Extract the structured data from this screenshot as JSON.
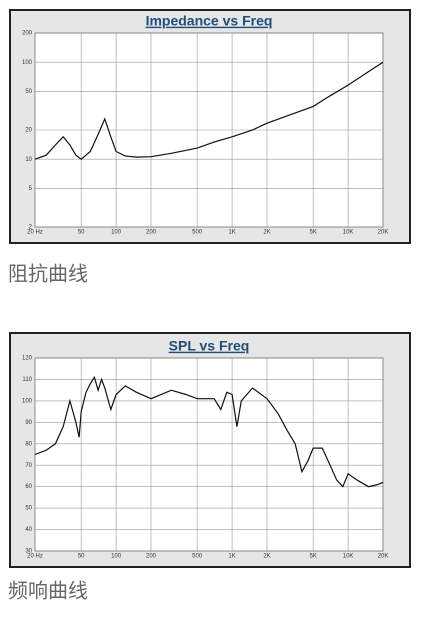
{
  "chart_data": [
    {
      "type": "line",
      "title": "Impedance vs Freq",
      "caption": "阻抗曲线",
      "xscale": "log",
      "yscale": "log",
      "grid": true,
      "color": "#111111",
      "xlim": [
        20,
        20000
      ],
      "ylim": [
        2,
        200
      ],
      "xticks": [
        {
          "value": 20,
          "label": "20 Hz"
        },
        50,
        100,
        200,
        500,
        {
          "value": 1000,
          "label": "1K"
        },
        {
          "value": 2000,
          "label": "2K"
        },
        {
          "value": 5000,
          "label": "5K"
        },
        {
          "value": 10000,
          "label": "10K"
        },
        {
          "value": 20000,
          "label": "20K"
        }
      ],
      "yticks": [
        2,
        5,
        10,
        20,
        50,
        100,
        200
      ],
      "x": [
        20,
        25,
        30,
        35,
        40,
        45,
        50,
        60,
        70,
        80,
        90,
        100,
        120,
        150,
        200,
        300,
        500,
        700,
        1000,
        1500,
        2000,
        3000,
        5000,
        7000,
        10000,
        15000,
        20000
      ],
      "values": [
        10,
        11,
        14,
        17,
        14,
        11,
        10,
        12,
        18,
        26,
        17,
        12,
        10.8,
        10.5,
        10.6,
        11.5,
        13,
        15,
        17,
        20,
        23.5,
        28,
        35,
        45,
        58,
        80,
        100
      ]
    },
    {
      "type": "line",
      "title": "SPL vs Freq",
      "caption": "频响曲线",
      "xscale": "log",
      "yscale": "linear",
      "grid": true,
      "color": "#111111",
      "xlim": [
        20,
        20000
      ],
      "ylim": [
        30,
        120
      ],
      "xticks": [
        {
          "value": 20,
          "label": "20 Hz"
        },
        50,
        100,
        200,
        500,
        {
          "value": 1000,
          "label": "1K"
        },
        {
          "value": 2000,
          "label": "2K"
        },
        {
          "value": 5000,
          "label": "5K"
        },
        {
          "value": 10000,
          "label": "10K"
        },
        {
          "value": 20000,
          "label": "20K"
        }
      ],
      "yticks": [
        30,
        40,
        50,
        60,
        70,
        80,
        90,
        100,
        110,
        120
      ],
      "x": [
        20,
        25,
        30,
        35,
        40,
        45,
        48,
        50,
        55,
        60,
        65,
        70,
        75,
        80,
        90,
        100,
        120,
        150,
        200,
        300,
        400,
        500,
        700,
        800,
        900,
        1000,
        1100,
        1200,
        1500,
        2000,
        2500,
        3000,
        3500,
        4000,
        4500,
        5000,
        6000,
        7000,
        8000,
        9000,
        10000,
        12000,
        15000,
        18000,
        20000
      ],
      "values": [
        75,
        77,
        80,
        88,
        100,
        90,
        83,
        95,
        104,
        108,
        111,
        105,
        110,
        106,
        96,
        103,
        107,
        104,
        101,
        105,
        103,
        101,
        101,
        96,
        104,
        103,
        88,
        100,
        106,
        101,
        94,
        86,
        80,
        67,
        72,
        78,
        78,
        70,
        63,
        60,
        66,
        63,
        60,
        61,
        62
      ]
    }
  ]
}
